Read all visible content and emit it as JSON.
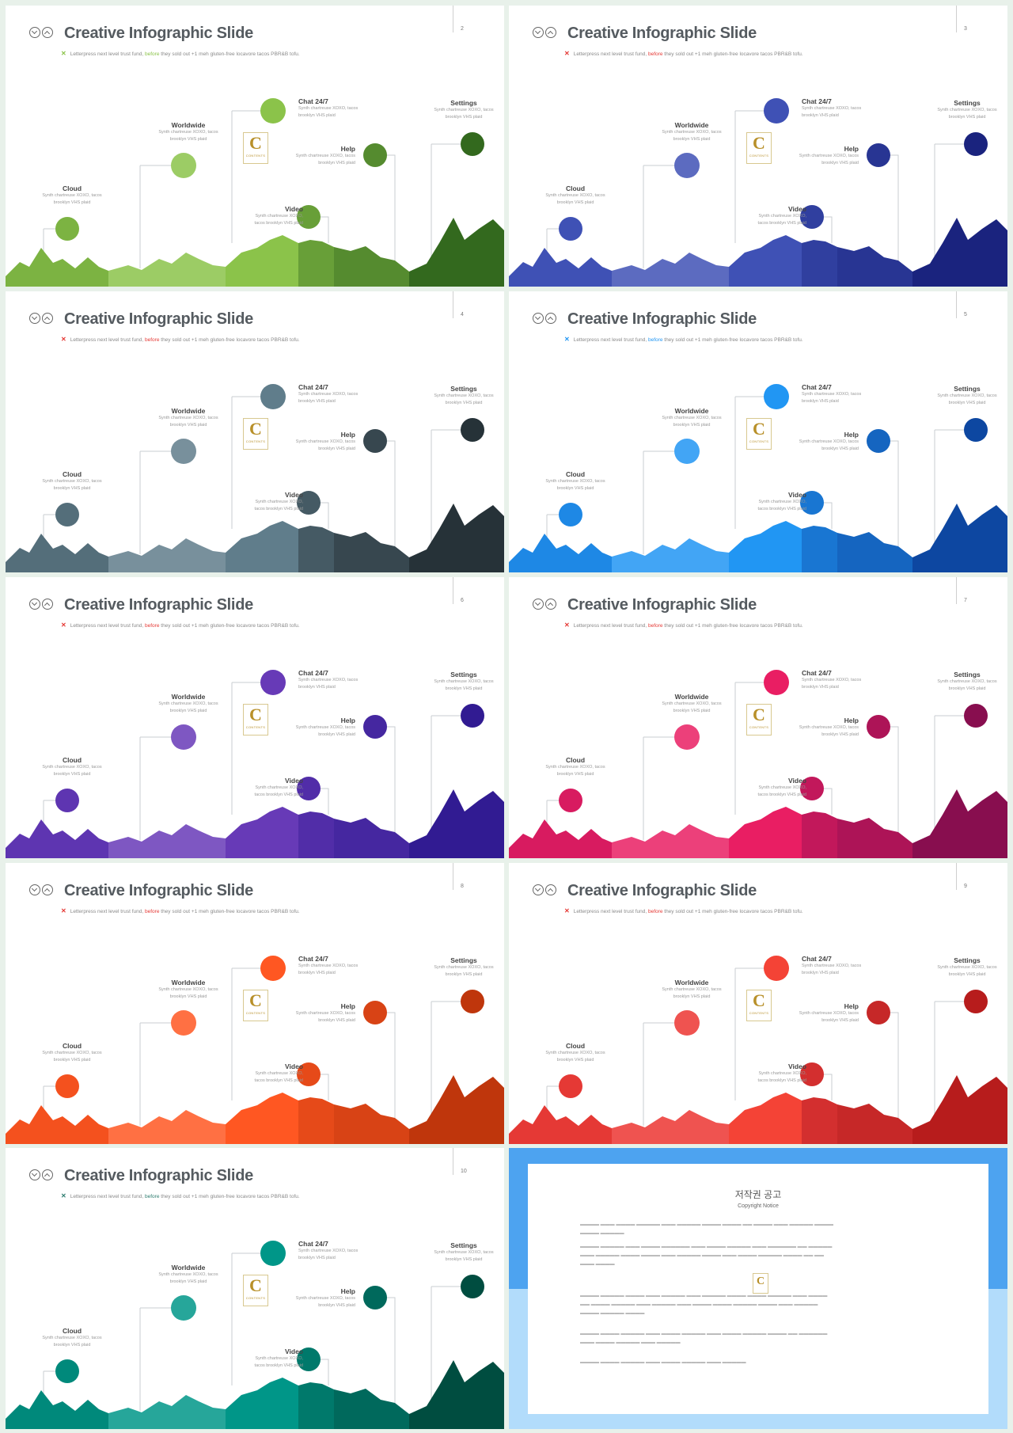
{
  "slide_title": "Creative Infographic Slide",
  "subtitle": {
    "pre": "Letterpress next level trust fund, ",
    "highlight": "before",
    "post": " they sold out +1 meh gluten-free locavore tacos PBR&B tofu."
  },
  "labels": {
    "cloud": "Cloud",
    "worldwide": "Worldwide",
    "chat": "Chat 24/7",
    "help": "Help",
    "video": "Video",
    "settings": "Settings"
  },
  "desc": {
    "line1": "Synth chartreuse XOXO, tacos",
    "line2": "brooklyn VHS plaid",
    "video_line1": "Synth chartreuse XOXO,",
    "video_line2": "tacos brooklyn VHS plaid"
  },
  "logo": {
    "letter": "C",
    "text": "CONTENTS"
  },
  "slides": [
    {
      "page": "2",
      "accent": "#8bc34a",
      "shades": [
        "#7cb342",
        "#9ccc65",
        "#8bc34a",
        "#689f38",
        "#558b2f",
        "#33691e"
      ]
    },
    {
      "page": "3",
      "accent": "#e53935",
      "shades": [
        "#3f51b5",
        "#5c6bc0",
        "#3f51b5",
        "#303f9f",
        "#283593",
        "#1a237e"
      ]
    },
    {
      "page": "4",
      "accent": "#e53935",
      "shades": [
        "#546e7a",
        "#78909c",
        "#607d8b",
        "#455a64",
        "#37474f",
        "#263238"
      ]
    },
    {
      "page": "5",
      "accent": "#2196f3",
      "shades": [
        "#1e88e5",
        "#42a5f5",
        "#2196f3",
        "#1976d2",
        "#1565c0",
        "#0d47a1"
      ]
    },
    {
      "page": "6",
      "accent": "#e53935",
      "shades": [
        "#5e35b1",
        "#7e57c2",
        "#673ab7",
        "#512da8",
        "#4527a0",
        "#311b92"
      ]
    },
    {
      "page": "7",
      "accent": "#e53935",
      "shades": [
        "#d81b60",
        "#ec407a",
        "#e91e63",
        "#c2185b",
        "#ad1457",
        "#880e4f"
      ]
    },
    {
      "page": "8",
      "accent": "#e53935",
      "shades": [
        "#f4511e",
        "#ff7043",
        "#ff5722",
        "#e64a19",
        "#d84315",
        "#bf360c"
      ]
    },
    {
      "page": "9",
      "accent": "#e53935",
      "shades": [
        "#e53935",
        "#ef5350",
        "#f44336",
        "#d32f2f",
        "#c62828",
        "#b71c1c"
      ]
    },
    {
      "page": "10",
      "accent": "#2e7d6f",
      "shades": [
        "#00897b",
        "#26a69a",
        "#009688",
        "#00796b",
        "#00695c",
        "#004d40"
      ]
    }
  ],
  "copyright": {
    "title": "저작권 공고",
    "subtitle": "Copyright Notice"
  }
}
